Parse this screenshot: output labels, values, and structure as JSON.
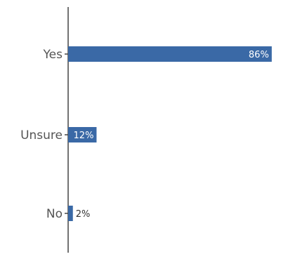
{
  "colors": {
    "bar": "#3a69a6",
    "axis": "#444444",
    "tick_text": "#555555",
    "label_inside": "#ffffff",
    "label_outside": "#333333"
  },
  "chart_data": {
    "type": "bar",
    "orientation": "horizontal",
    "categories": [
      "Yes",
      "Unsure",
      "No"
    ],
    "values": [
      86,
      12,
      2
    ],
    "data_labels": [
      "86%",
      "12%",
      "2%"
    ],
    "unit": "%",
    "xlim": [
      0,
      100
    ],
    "grid": false,
    "legend": "none"
  }
}
